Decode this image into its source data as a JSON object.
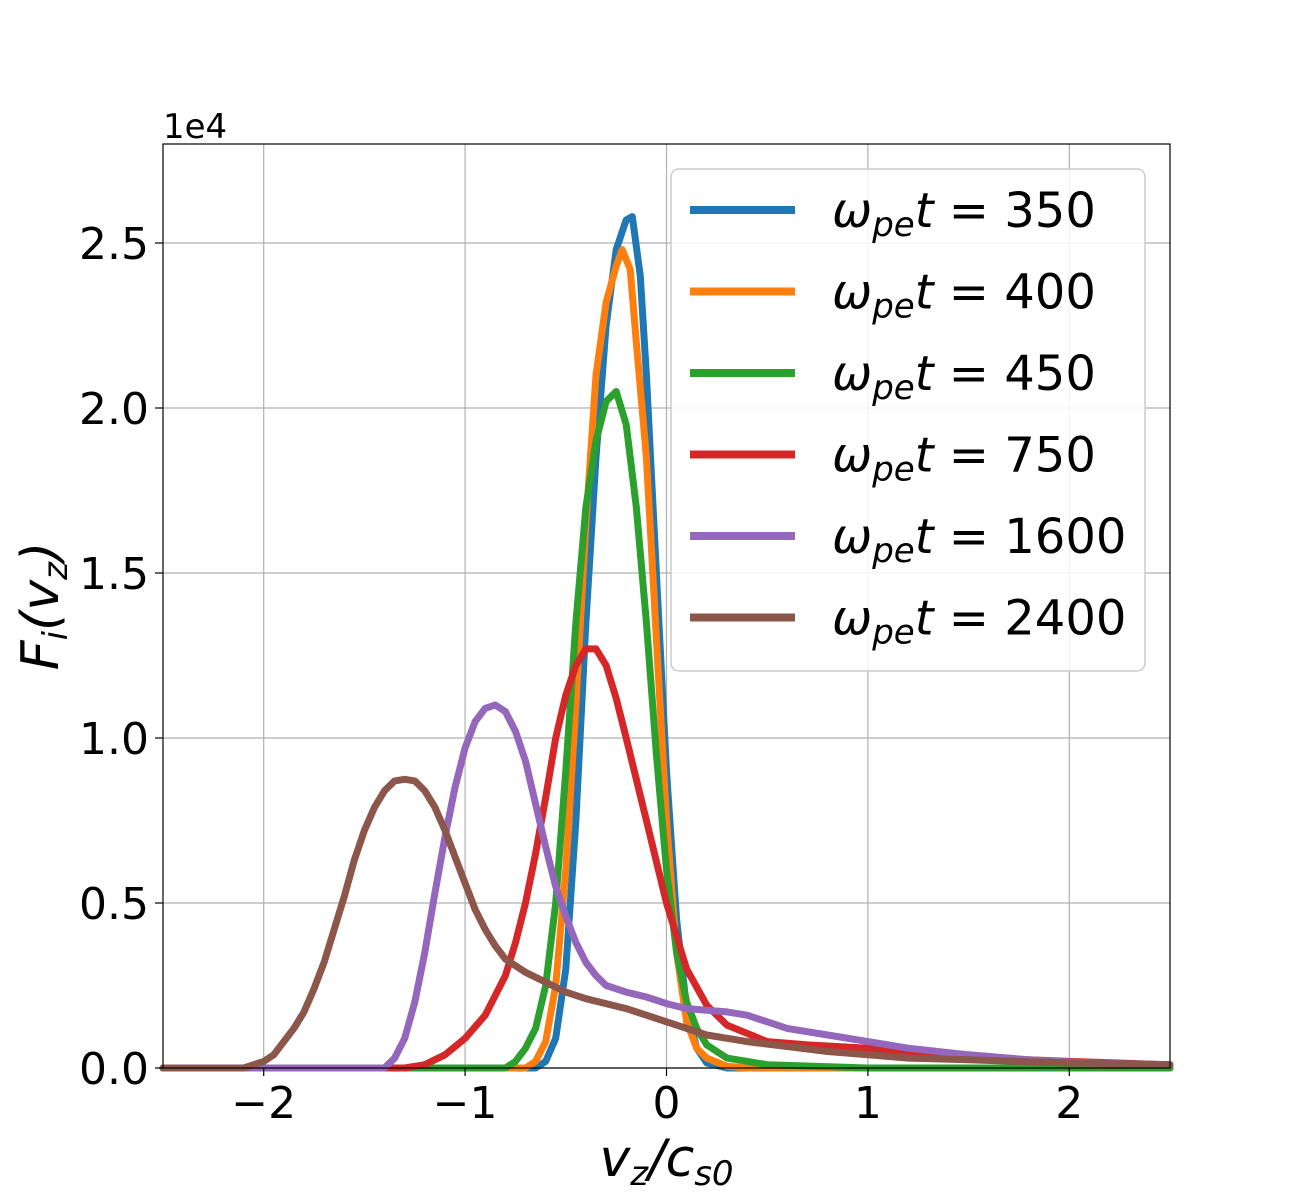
{
  "chart_data": {
    "type": "line",
    "title": "",
    "xlabel": "v_z/c_s0",
    "ylabel": "F_i(v_z)",
    "y_scale_label": "1e4",
    "xlim": [
      -2.5,
      2.5
    ],
    "ylim": [
      0,
      28000
    ],
    "xticks": [
      -2,
      -1,
      0,
      1,
      2
    ],
    "xtick_labels": [
      "−2",
      "−1",
      "0",
      "1",
      "2"
    ],
    "yticks": [
      0,
      5000,
      10000,
      15000,
      20000,
      25000
    ],
    "ytick_labels": [
      "0.0",
      "0.5",
      "1.0",
      "1.5",
      "2.0",
      "2.5"
    ],
    "grid": true,
    "legend_position": "top-right",
    "legend_prefix": "ω",
    "legend_sub": "pe",
    "legend_mid": "t = ",
    "series": [
      {
        "name": "350",
        "color": "#1f77b4",
        "points": [
          [
            -2.5,
            0
          ],
          [
            -0.65,
            0
          ],
          [
            -0.6,
            200
          ],
          [
            -0.55,
            900
          ],
          [
            -0.5,
            3000
          ],
          [
            -0.45,
            7500
          ],
          [
            -0.4,
            13500
          ],
          [
            -0.35,
            18500
          ],
          [
            -0.3,
            22500
          ],
          [
            -0.25,
            24800
          ],
          [
            -0.2,
            25700
          ],
          [
            -0.17,
            25800
          ],
          [
            -0.13,
            24000
          ],
          [
            -0.1,
            21000
          ],
          [
            -0.05,
            15000
          ],
          [
            0,
            9000
          ],
          [
            0.05,
            4500
          ],
          [
            0.1,
            1800
          ],
          [
            0.15,
            600
          ],
          [
            0.2,
            150
          ],
          [
            0.3,
            0
          ],
          [
            2.5,
            0
          ]
        ]
      },
      {
        "name": "400",
        "color": "#ff7f0e",
        "points": [
          [
            -2.5,
            0
          ],
          [
            -0.7,
            0
          ],
          [
            -0.65,
            200
          ],
          [
            -0.6,
            800
          ],
          [
            -0.55,
            2500
          ],
          [
            -0.5,
            6000
          ],
          [
            -0.45,
            11000
          ],
          [
            -0.4,
            16500
          ],
          [
            -0.35,
            21000
          ],
          [
            -0.3,
            23200
          ],
          [
            -0.25,
            24300
          ],
          [
            -0.22,
            24800
          ],
          [
            -0.18,
            24200
          ],
          [
            -0.15,
            22000
          ],
          [
            -0.1,
            18500
          ],
          [
            -0.05,
            13000
          ],
          [
            0,
            7500
          ],
          [
            0.05,
            3500
          ],
          [
            0.1,
            1400
          ],
          [
            0.15,
            600
          ],
          [
            0.2,
            300
          ],
          [
            0.3,
            50
          ],
          [
            0.4,
            0
          ],
          [
            2.5,
            0
          ]
        ]
      },
      {
        "name": "450",
        "color": "#2ca02c",
        "points": [
          [
            -2.5,
            0
          ],
          [
            -0.8,
            0
          ],
          [
            -0.75,
            200
          ],
          [
            -0.7,
            600
          ],
          [
            -0.65,
            1200
          ],
          [
            -0.6,
            2500
          ],
          [
            -0.55,
            5000
          ],
          [
            -0.5,
            9000
          ],
          [
            -0.45,
            13500
          ],
          [
            -0.4,
            17000
          ],
          [
            -0.35,
            19000
          ],
          [
            -0.3,
            20200
          ],
          [
            -0.25,
            20500
          ],
          [
            -0.2,
            19500
          ],
          [
            -0.15,
            17000
          ],
          [
            -0.1,
            13500
          ],
          [
            -0.05,
            9500
          ],
          [
            0,
            6000
          ],
          [
            0.05,
            3500
          ],
          [
            0.1,
            2000
          ],
          [
            0.15,
            1200
          ],
          [
            0.2,
            700
          ],
          [
            0.3,
            300
          ],
          [
            0.5,
            100
          ],
          [
            1,
            0
          ],
          [
            2.5,
            0
          ]
        ]
      },
      {
        "name": "750",
        "color": "#d62728",
        "points": [
          [
            -2.5,
            0
          ],
          [
            -1.3,
            0
          ],
          [
            -1.2,
            100
          ],
          [
            -1.1,
            400
          ],
          [
            -1.0,
            900
          ],
          [
            -0.9,
            1600
          ],
          [
            -0.8,
            2800
          ],
          [
            -0.75,
            3800
          ],
          [
            -0.7,
            5000
          ],
          [
            -0.65,
            6500
          ],
          [
            -0.6,
            8200
          ],
          [
            -0.55,
            10000
          ],
          [
            -0.5,
            11300
          ],
          [
            -0.45,
            12200
          ],
          [
            -0.4,
            12700
          ],
          [
            -0.35,
            12700
          ],
          [
            -0.3,
            12200
          ],
          [
            -0.25,
            11200
          ],
          [
            -0.2,
            10000
          ],
          [
            -0.1,
            7500
          ],
          [
            0,
            5000
          ],
          [
            0.1,
            3000
          ],
          [
            0.2,
            1900
          ],
          [
            0.3,
            1300
          ],
          [
            0.5,
            800
          ],
          [
            0.7,
            700
          ],
          [
            1.0,
            600
          ],
          [
            1.3,
            400
          ],
          [
            1.6,
            300
          ],
          [
            2.0,
            200
          ],
          [
            2.5,
            100
          ]
        ]
      },
      {
        "name": "1600",
        "color": "#9467bd",
        "points": [
          [
            -2.5,
            0
          ],
          [
            -1.4,
            0
          ],
          [
            -1.35,
            300
          ],
          [
            -1.3,
            900
          ],
          [
            -1.25,
            2000
          ],
          [
            -1.2,
            3500
          ],
          [
            -1.15,
            5300
          ],
          [
            -1.1,
            7000
          ],
          [
            -1.05,
            8500
          ],
          [
            -1.0,
            9700
          ],
          [
            -0.95,
            10500
          ],
          [
            -0.9,
            10900
          ],
          [
            -0.85,
            11000
          ],
          [
            -0.8,
            10800
          ],
          [
            -0.75,
            10200
          ],
          [
            -0.7,
            9300
          ],
          [
            -0.65,
            8000
          ],
          [
            -0.6,
            6700
          ],
          [
            -0.55,
            5500
          ],
          [
            -0.5,
            4600
          ],
          [
            -0.45,
            3800
          ],
          [
            -0.4,
            3200
          ],
          [
            -0.35,
            2800
          ],
          [
            -0.3,
            2500
          ],
          [
            -0.2,
            2300
          ],
          [
            -0.1,
            2150
          ],
          [
            0,
            1950
          ],
          [
            0.1,
            1800
          ],
          [
            0.2,
            1750
          ],
          [
            0.3,
            1700
          ],
          [
            0.4,
            1600
          ],
          [
            0.5,
            1400
          ],
          [
            0.6,
            1200
          ],
          [
            0.8,
            1000
          ],
          [
            1.0,
            800
          ],
          [
            1.2,
            600
          ],
          [
            1.5,
            400
          ],
          [
            1.8,
            250
          ],
          [
            2.1,
            150
          ],
          [
            2.5,
            100
          ]
        ]
      },
      {
        "name": "2400",
        "color": "#8c564b",
        "points": [
          [
            -2.5,
            0
          ],
          [
            -2.1,
            0
          ],
          [
            -2.0,
            200
          ],
          [
            -1.95,
            400
          ],
          [
            -1.9,
            800
          ],
          [
            -1.85,
            1200
          ],
          [
            -1.8,
            1700
          ],
          [
            -1.75,
            2400
          ],
          [
            -1.7,
            3200
          ],
          [
            -1.65,
            4200
          ],
          [
            -1.6,
            5200
          ],
          [
            -1.55,
            6300
          ],
          [
            -1.5,
            7200
          ],
          [
            -1.45,
            7900
          ],
          [
            -1.4,
            8400
          ],
          [
            -1.35,
            8700
          ],
          [
            -1.3,
            8750
          ],
          [
            -1.25,
            8700
          ],
          [
            -1.2,
            8400
          ],
          [
            -1.15,
            7900
          ],
          [
            -1.1,
            7200
          ],
          [
            -1.05,
            6400
          ],
          [
            -1.0,
            5600
          ],
          [
            -0.95,
            4800
          ],
          [
            -0.9,
            4200
          ],
          [
            -0.85,
            3700
          ],
          [
            -0.8,
            3300
          ],
          [
            -0.7,
            2900
          ],
          [
            -0.6,
            2600
          ],
          [
            -0.5,
            2300
          ],
          [
            -0.4,
            2100
          ],
          [
            -0.2,
            1800
          ],
          [
            0,
            1400
          ],
          [
            0.2,
            1000
          ],
          [
            0.4,
            800
          ],
          [
            0.6,
            650
          ],
          [
            0.8,
            500
          ],
          [
            1.0,
            400
          ],
          [
            1.2,
            300
          ],
          [
            1.5,
            250
          ],
          [
            2.0,
            150
          ],
          [
            2.5,
            100
          ]
        ]
      }
    ]
  }
}
